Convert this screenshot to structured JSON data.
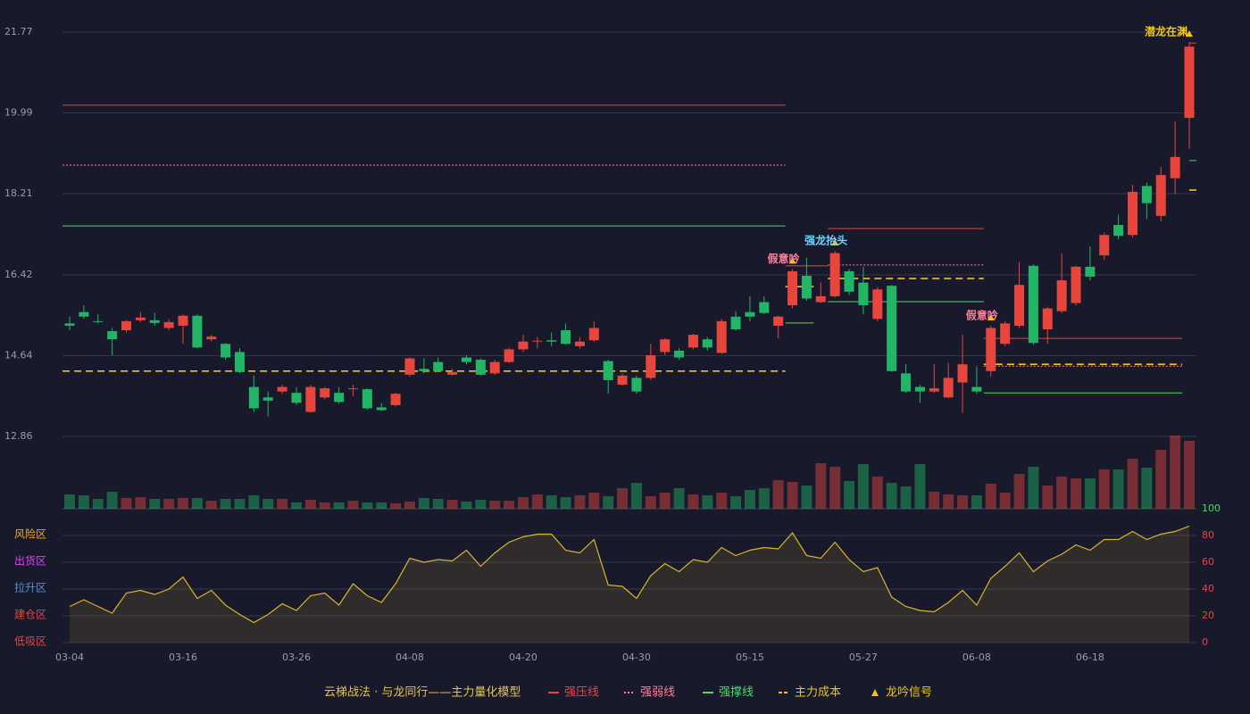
{
  "chart_data": {
    "type": "candlestick",
    "categories": [
      "03-04",
      null,
      null,
      null,
      null,
      null,
      null,
      null,
      "03-16",
      null,
      null,
      null,
      null,
      null,
      null,
      null,
      "03-26",
      null,
      null,
      null,
      null,
      null,
      null,
      null,
      "04-08",
      null,
      null,
      null,
      null,
      null,
      null,
      null,
      "04-20",
      null,
      null,
      null,
      null,
      null,
      null,
      null,
      "04-30",
      null,
      null,
      null,
      null,
      null,
      null,
      null,
      "05-15",
      null,
      null,
      null,
      null,
      null,
      null,
      null,
      "05-27",
      null,
      null,
      null,
      null,
      null,
      null,
      null,
      "06-08",
      null,
      null,
      null,
      null,
      null,
      null,
      null,
      "06-18",
      null,
      null,
      null,
      null,
      null,
      null,
      null
    ],
    "candles": {
      "open": [
        15.35,
        15.6,
        15.4,
        15.18,
        15.2,
        15.42,
        15.42,
        15.25,
        15.3,
        15.52,
        15.0,
        14.9,
        14.72,
        13.95,
        13.72,
        13.85,
        13.82,
        13.4,
        13.72,
        13.82,
        13.9,
        13.9,
        13.5,
        13.55,
        14.22,
        14.35,
        14.5,
        14.22,
        14.6,
        14.55,
        14.25,
        14.5,
        14.78,
        14.95,
        14.98,
        15.2,
        14.85,
        14.98,
        14.52,
        14.0,
        14.15,
        14.15,
        14.72,
        14.75,
        14.82,
        15.0,
        14.7,
        15.5,
        15.6,
        15.82,
        15.3,
        15.75,
        16.4,
        15.82,
        15.95,
        16.5,
        16.25,
        15.45,
        16.18,
        14.25,
        13.95,
        13.85,
        13.72,
        14.05,
        13.95,
        14.3,
        14.9,
        15.3,
        16.62,
        15.22,
        15.62,
        15.8,
        16.6,
        16.85,
        17.52,
        17.3,
        18.38,
        17.72,
        18.55,
        19.88
      ],
      "high": [
        15.5,
        15.75,
        15.55,
        15.25,
        15.42,
        15.6,
        15.58,
        15.45,
        15.55,
        15.55,
        15.1,
        14.92,
        14.8,
        14.2,
        13.85,
        14.0,
        13.95,
        14.0,
        13.95,
        13.95,
        14.0,
        13.92,
        13.6,
        13.82,
        14.6,
        14.58,
        14.6,
        14.35,
        14.65,
        14.58,
        14.55,
        14.82,
        15.1,
        15.05,
        15.15,
        15.35,
        15.05,
        15.4,
        14.55,
        14.25,
        14.2,
        14.9,
        15.02,
        14.8,
        15.12,
        15.05,
        15.45,
        15.62,
        15.95,
        15.95,
        15.52,
        16.55,
        16.8,
        16.25,
        16.95,
        16.55,
        16.6,
        16.15,
        16.2,
        14.45,
        14.0,
        14.45,
        14.48,
        15.1,
        14.4,
        15.3,
        15.4,
        16.7,
        16.65,
        15.72,
        16.9,
        16.62,
        17.05,
        17.35,
        17.75,
        18.4,
        18.45,
        18.8,
        19.8,
        21.55
      ],
      "low": [
        15.2,
        15.45,
        15.35,
        14.65,
        15.15,
        15.38,
        15.3,
        15.2,
        14.9,
        14.8,
        14.95,
        14.55,
        14.25,
        13.4,
        13.3,
        13.8,
        13.55,
        13.38,
        13.68,
        13.58,
        13.75,
        13.45,
        13.42,
        13.52,
        14.18,
        14.25,
        14.28,
        14.2,
        14.45,
        14.2,
        14.22,
        14.48,
        14.72,
        14.8,
        14.85,
        14.88,
        14.8,
        14.95,
        13.8,
        13.98,
        13.8,
        14.1,
        14.65,
        14.55,
        14.78,
        14.75,
        14.68,
        15.2,
        15.4,
        15.55,
        15.02,
        15.68,
        15.85,
        15.8,
        15.92,
        15.98,
        15.55,
        15.4,
        14.28,
        13.82,
        13.6,
        13.82,
        13.7,
        13.38,
        13.8,
        14.18,
        14.85,
        15.25,
        14.88,
        14.9,
        15.58,
        15.75,
        16.3,
        16.75,
        17.2,
        17.25,
        17.65,
        17.6,
        18.2,
        19.2
      ],
      "close": [
        15.3,
        15.5,
        15.38,
        15.0,
        15.4,
        15.48,
        15.36,
        15.38,
        15.52,
        14.82,
        15.06,
        14.6,
        14.28,
        13.48,
        13.65,
        13.95,
        13.6,
        13.95,
        13.92,
        13.62,
        13.92,
        13.48,
        13.44,
        13.8,
        14.58,
        14.3,
        14.3,
        14.28,
        14.5,
        14.22,
        14.5,
        14.78,
        14.95,
        14.97,
        14.95,
        14.9,
        14.95,
        15.25,
        14.1,
        14.2,
        13.85,
        14.65,
        15.0,
        14.6,
        15.1,
        14.82,
        15.4,
        15.22,
        15.5,
        15.58,
        15.5,
        16.5,
        15.9,
        15.95,
        16.9,
        16.05,
        15.75,
        16.1,
        14.3,
        13.85,
        13.85,
        13.92,
        14.15,
        14.45,
        13.85,
        15.25,
        15.35,
        16.2,
        14.92,
        15.68,
        16.3,
        16.6,
        16.38,
        17.3,
        17.28,
        18.25,
        18.0,
        18.62,
        19.02,
        21.45
      ]
    },
    "up_color": "#e8453c",
    "down_color": "#22b565",
    "volume": [
      16,
      15,
      11,
      19,
      12,
      13,
      11,
      11,
      12,
      12,
      9,
      11,
      11,
      15,
      11,
      11,
      7,
      10,
      7,
      7,
      9,
      7,
      7,
      6,
      8,
      12,
      11,
      10,
      8,
      10,
      9,
      9,
      13,
      16,
      15,
      13,
      15,
      18,
      14,
      23,
      29,
      14,
      18,
      23,
      16,
      15,
      18,
      14,
      21,
      23,
      32,
      30,
      26,
      51,
      47,
      31,
      50,
      36,
      29,
      25,
      50,
      19,
      16,
      15,
      15,
      28,
      18,
      39,
      47,
      26,
      36,
      34,
      34,
      44,
      44,
      56,
      46,
      66,
      82,
      76
    ],
    "ylim": [
      12.86,
      21.77
    ],
    "yticks": [
      12.86,
      14.64,
      16.42,
      18.21,
      19.99,
      21.77
    ],
    "indicator": {
      "color": "#d9b52c",
      "values": [
        27,
        32,
        27,
        22,
        37,
        39,
        36,
        40,
        49,
        33,
        39,
        28,
        21,
        15,
        21,
        29,
        24,
        35,
        37,
        28,
        44,
        35,
        30,
        44,
        63,
        60,
        62,
        61,
        69,
        57,
        67,
        75,
        79,
        81,
        81,
        69,
        67,
        77,
        43,
        42,
        33,
        50,
        59,
        53,
        62,
        60,
        71,
        65,
        69,
        71,
        70,
        82,
        65,
        63,
        75,
        62,
        53,
        56,
        34,
        27,
        24,
        23,
        30,
        39,
        28,
        48,
        57,
        67,
        53,
        61,
        66,
        73,
        69,
        77,
        77,
        83,
        77,
        81,
        83,
        87
      ],
      "ylim": [
        0,
        100
      ],
      "yticks": [
        0,
        20,
        40,
        60,
        80,
        100
      ],
      "zones": [
        {
          "label": "风险区",
          "color": "#f5a623",
          "value": 80
        },
        {
          "label": "出货区",
          "color": "#e040fb",
          "value": 60
        },
        {
          "label": "拉升区",
          "color": "#4a90e2",
          "value": 40
        },
        {
          "label": "建仓区",
          "color": "#e8453c",
          "value": 20
        },
        {
          "label": "低吸区",
          "color": "#e8453c",
          "value": 0
        }
      ]
    },
    "legend_title": "云梯战法 · 与龙同行——主力量化模型",
    "legend": [
      {
        "name": "强压线",
        "color": "#e8453c",
        "style": "solid",
        "lines": [
          {
            "value": 20.16,
            "from": 0,
            "to": 50
          },
          {
            "value": 16.62,
            "from": 51,
            "to": 53
          },
          {
            "value": 17.44,
            "from": 54,
            "to": 64
          },
          {
            "value": 15.02,
            "from": 65,
            "to": 78
          },
          {
            "value": 21.53,
            "from": 79,
            "to": 79
          }
        ]
      },
      {
        "name": "强弱线",
        "color": "#ff7f9a",
        "style": "dotted",
        "lines": [
          {
            "value": 18.84,
            "from": 0,
            "to": 50
          },
          {
            "value": 16.64,
            "from": 54,
            "to": 64
          },
          {
            "value": 14.41,
            "from": 65,
            "to": 78
          }
        ]
      },
      {
        "name": "强撑线",
        "color": "#4cd964",
        "style": "solid",
        "lines": [
          {
            "value": 17.5,
            "from": 0,
            "to": 50
          },
          {
            "value": 15.36,
            "from": 51,
            "to": 52
          },
          {
            "value": 15.83,
            "from": 54,
            "to": 64
          },
          {
            "value": 13.82,
            "from": 65,
            "to": 78
          },
          {
            "value": 18.94,
            "from": 79,
            "to": 79
          }
        ]
      },
      {
        "name": "主力成本",
        "color": "#f0c419",
        "style": "dashed",
        "lines": [
          {
            "value": 14.3,
            "from": 0,
            "to": 50
          },
          {
            "value": 16.16,
            "from": 51,
            "to": 52
          },
          {
            "value": 16.34,
            "from": 54,
            "to": 64
          },
          {
            "value": 14.45,
            "from": 65,
            "to": 78
          },
          {
            "value": 18.29,
            "from": 79,
            "to": 79
          }
        ]
      },
      {
        "name": "龙吟信号",
        "color": "#f0c419",
        "style": "triangle",
        "signals": [
          {
            "text": "假意吟",
            "index": 51,
            "color": "#ff7f9a"
          },
          {
            "text": "强龙抬头",
            "index": 54,
            "color": "#6fd3ff"
          },
          {
            "text": "假意吟",
            "index": 65,
            "color": "#ff7f9a"
          },
          {
            "text": "潜龙在渊",
            "index": 79,
            "color": "#f0c419"
          }
        ]
      }
    ]
  }
}
